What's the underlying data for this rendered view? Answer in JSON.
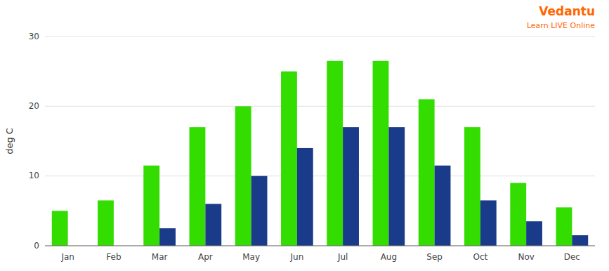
{
  "chart_data": {
    "type": "bar",
    "title": "Vedantu",
    "subtitle": "Learn LIVE Online",
    "categories": [
      "Jan",
      "Feb",
      "Mar",
      "Apr",
      "May",
      "Jun",
      "Jul",
      "Aug",
      "Sep",
      "Oct",
      "Nov",
      "Dec"
    ],
    "series": [
      {
        "color": "#33dd00",
        "values": [
          5,
          6.5,
          11.5,
          17,
          20,
          25,
          26.5,
          26.5,
          21,
          17,
          9,
          5.5
        ]
      },
      {
        "color": "#1a3a8a",
        "values": [
          0,
          0,
          2.5,
          6,
          10,
          14,
          17,
          17,
          11.5,
          6.5,
          3.5,
          1.5
        ]
      }
    ],
    "ylabel": "deg C",
    "ylim": [
      0,
      30
    ],
    "yticks": [
      0,
      10,
      20,
      30
    ],
    "grid": true
  }
}
